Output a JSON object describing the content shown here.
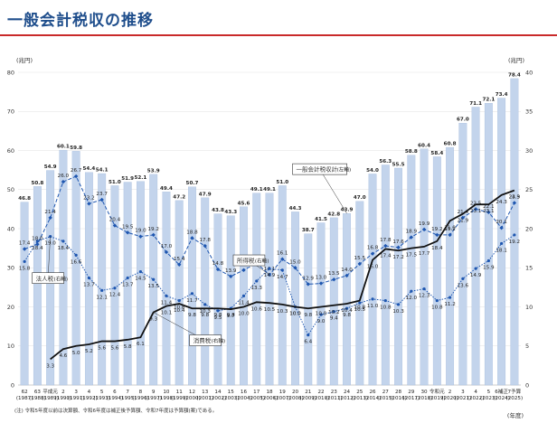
{
  "page": {
    "title": "一般会計税収の推移",
    "footnote": "(注) 令和5年度以前は決算額、令和6年度は補正後予算額、令和7年度は予算額(案)である。"
  },
  "chart_data": {
    "type": "bar+line",
    "left_unit": "(兆円)",
    "right_unit": "(兆円)",
    "xlabel": "(年度)",
    "ylim_left": [
      0,
      80
    ],
    "ylim_right": [
      0,
      40
    ],
    "yticks_left": [
      "0",
      "10",
      "20",
      "30",
      "40",
      "50",
      "60",
      "70",
      "80"
    ],
    "yticks_right": [
      "0",
      "5",
      "10",
      "15",
      "20",
      "25",
      "30",
      "35",
      "40"
    ],
    "categories": [
      {
        "era": "62",
        "year": "(1987)"
      },
      {
        "era": "63",
        "year": "(1988)"
      },
      {
        "era": "平成元",
        "year": "(1989)"
      },
      {
        "era": "2",
        "year": "(1990)"
      },
      {
        "era": "3",
        "year": "(1991)"
      },
      {
        "era": "4",
        "year": "(1992)"
      },
      {
        "era": "5",
        "year": "(1993)"
      },
      {
        "era": "6",
        "year": "(1994)"
      },
      {
        "era": "7",
        "year": "(1995)"
      },
      {
        "era": "8",
        "year": "(1996)"
      },
      {
        "era": "9",
        "year": "(1997)"
      },
      {
        "era": "10",
        "year": "(1998)"
      },
      {
        "era": "11",
        "year": "(1999)"
      },
      {
        "era": "12",
        "year": "(2000)"
      },
      {
        "era": "13",
        "year": "(2001)"
      },
      {
        "era": "14",
        "year": "(2002)"
      },
      {
        "era": "15",
        "year": "(2003)"
      },
      {
        "era": "16",
        "year": "(2004)"
      },
      {
        "era": "17",
        "year": "(2005)"
      },
      {
        "era": "18",
        "year": "(2006)"
      },
      {
        "era": "19",
        "year": "(2007)"
      },
      {
        "era": "20",
        "year": "(2008)"
      },
      {
        "era": "21",
        "year": "(2009)"
      },
      {
        "era": "22",
        "year": "(2010)"
      },
      {
        "era": "23",
        "year": "(2011)"
      },
      {
        "era": "24",
        "year": "(2012)"
      },
      {
        "era": "25",
        "year": "(2013)"
      },
      {
        "era": "26",
        "year": "(2014)"
      },
      {
        "era": "27",
        "year": "(2015)"
      },
      {
        "era": "28",
        "year": "(2016)"
      },
      {
        "era": "29",
        "year": "(2017)"
      },
      {
        "era": "30",
        "year": "(2018)"
      },
      {
        "era": "令和元",
        "year": "(2019)"
      },
      {
        "era": "2",
        "year": "(2020)"
      },
      {
        "era": "3",
        "year": "(2021)"
      },
      {
        "era": "4",
        "year": "(2022)"
      },
      {
        "era": "5",
        "year": "(2023)"
      },
      {
        "era": "6補正",
        "year": "(2024)"
      },
      {
        "era": "7予算",
        "year": "(2025)"
      }
    ],
    "series": [
      {
        "name": "一般会計税収計",
        "axis": "left",
        "kind": "bar",
        "values": [
          46.8,
          50.8,
          54.9,
          60.1,
          59.8,
          54.4,
          54.1,
          51.0,
          51.9,
          52.1,
          53.9,
          49.4,
          47.2,
          50.7,
          47.9,
          43.8,
          43.3,
          45.6,
          49.1,
          49.1,
          51.0,
          44.3,
          38.7,
          41.5,
          42.8,
          43.9,
          47.0,
          54.0,
          56.3,
          55.5,
          58.8,
          60.4,
          58.4,
          60.8,
          67.0,
          71.1,
          72.1,
          73.4,
          78.4
        ],
        "labels": [
          "46.8",
          "50.8",
          "54.9",
          "60.1",
          "59.8",
          "54.4",
          "54.1",
          "51.0",
          "51.9",
          "52.1",
          "53.9",
          "49.4",
          "47.2",
          "50.7",
          "47.9",
          "43.8",
          "43.3",
          "45.6",
          "49.1",
          "49.1",
          "51.0",
          "44.3",
          "38.7",
          "41.5",
          "42.8",
          "43.9",
          "47.0",
          "54.0",
          "56.3",
          "55.5",
          "58.8",
          "60.4",
          "58.4",
          "60.8",
          "67.0",
          "71.1",
          "72.1",
          "73.4",
          "78.4"
        ]
      },
      {
        "name": "所得税",
        "axis": "right",
        "kind": "line",
        "dash": "dashed",
        "color": "#1e56b0",
        "marker": "diamond",
        "values": [
          17.4,
          18.0,
          21.4,
          26.0,
          26.7,
          23.2,
          23.7,
          20.4,
          19.5,
          19.0,
          19.2,
          17.0,
          15.4,
          18.8,
          17.8,
          14.8,
          13.9,
          14.7,
          15.6,
          14.1,
          16.1,
          15.0,
          12.9,
          13.0,
          13.5,
          14.0,
          15.5,
          16.8,
          17.8,
          17.6,
          18.9,
          19.9,
          19.2,
          19.2,
          21.4,
          22.5,
          22.1,
          20.1,
          23.3
        ],
        "labels": [
          "17.4",
          "18.0",
          "21.4",
          "26.0",
          "26.7",
          "23.2",
          "23.7",
          "20.4",
          "19.5",
          "19.0",
          "19.2",
          "17.0",
          "15.4",
          "18.8",
          "17.8",
          "14.8",
          "13.9",
          "14.7",
          "15.6",
          "14.1",
          "16.1",
          "15.0",
          "12.9",
          "13.0",
          "13.5",
          "14.0",
          "15.5",
          "16.8",
          "17.8",
          "17.6",
          "18.9",
          "19.9",
          "19.2",
          "19.2",
          "21.4",
          "22.5",
          "22.1",
          "20.1",
          "23.3"
        ]
      },
      {
        "name": "法人税",
        "axis": "right",
        "kind": "line",
        "dash": "dotted",
        "color": "#1e56b0",
        "marker": "circle",
        "values": [
          15.8,
          18.4,
          19.0,
          18.4,
          16.6,
          13.7,
          12.1,
          12.4,
          13.7,
          14.5,
          13.5,
          11.4,
          10.8,
          11.7,
          10.3,
          9.5,
          9.8,
          11.4,
          13.3,
          14.9,
          14.7,
          10.0,
          6.4,
          9.0,
          9.4,
          9.8,
          10.5,
          11.0,
          10.8,
          10.3,
          12.0,
          12.3,
          10.8,
          11.2,
          13.6,
          14.9,
          15.9,
          18.1,
          19.2
        ],
        "labels": [
          "15.8",
          "18.4",
          "19.0",
          "18.4",
          "16.6",
          "13.7",
          "12.1",
          "12.4",
          "13.7",
          "14.5",
          "13.5",
          "11.4",
          "10.8",
          "11.7",
          "10.3",
          "9.5",
          "9.8",
          "11.4",
          "13.3",
          "14.9",
          "14.7",
          "10.0",
          "6.4",
          "9.0",
          "9.4",
          "9.8",
          "10.5",
          "11.0",
          "10.8",
          "10.3",
          "12.0",
          "12.3",
          "10.8",
          "11.2",
          "13.6",
          "14.9",
          "15.9",
          "18.1",
          "19.2"
        ]
      },
      {
        "name": "消費税",
        "axis": "right",
        "kind": "line",
        "dash": "solid",
        "color": "#111111",
        "marker": "none",
        "values": [
          null,
          null,
          3.3,
          4.6,
          5.0,
          5.2,
          5.6,
          5.6,
          5.8,
          6.1,
          9.3,
          10.1,
          10.4,
          9.8,
          9.8,
          9.8,
          9.7,
          10.0,
          10.6,
          10.5,
          10.3,
          10.0,
          9.8,
          10.0,
          10.2,
          10.4,
          10.8,
          16.0,
          17.4,
          17.2,
          17.5,
          17.7,
          18.4,
          21.0,
          21.9,
          23.1,
          23.1,
          24.3,
          24.9
        ],
        "labels": [
          "",
          "",
          "3.3",
          "4.6",
          "5.0",
          "5.2",
          "5.6",
          "5.6",
          "5.8",
          "6.1",
          "9.3",
          "10.1",
          "10.4",
          "9.8",
          "9.8",
          "9.8",
          "9.7",
          "10.0",
          "10.6",
          "10.5",
          "10.3",
          "10.0",
          "9.8",
          "10.0",
          "10.2",
          "10.4",
          "10.8",
          "16.0",
          "17.4",
          "17.2",
          "17.5",
          "17.7",
          "18.4",
          "21.0",
          "21.9",
          "23.1",
          "23.1",
          "24.3",
          "24.9"
        ]
      }
    ],
    "callouts": [
      {
        "text": "一般会計税収計",
        "small": "(左軸)",
        "series": 0,
        "ref": 25
      },
      {
        "text": "所得税",
        "small": "(右軸)",
        "series": 1,
        "ref": 19
      },
      {
        "text": "法人税",
        "small": "(右軸)",
        "series": 2,
        "ref": 2
      },
      {
        "text": "消費税",
        "small": "(右軸)",
        "series": 3,
        "ref": 10
      }
    ]
  }
}
